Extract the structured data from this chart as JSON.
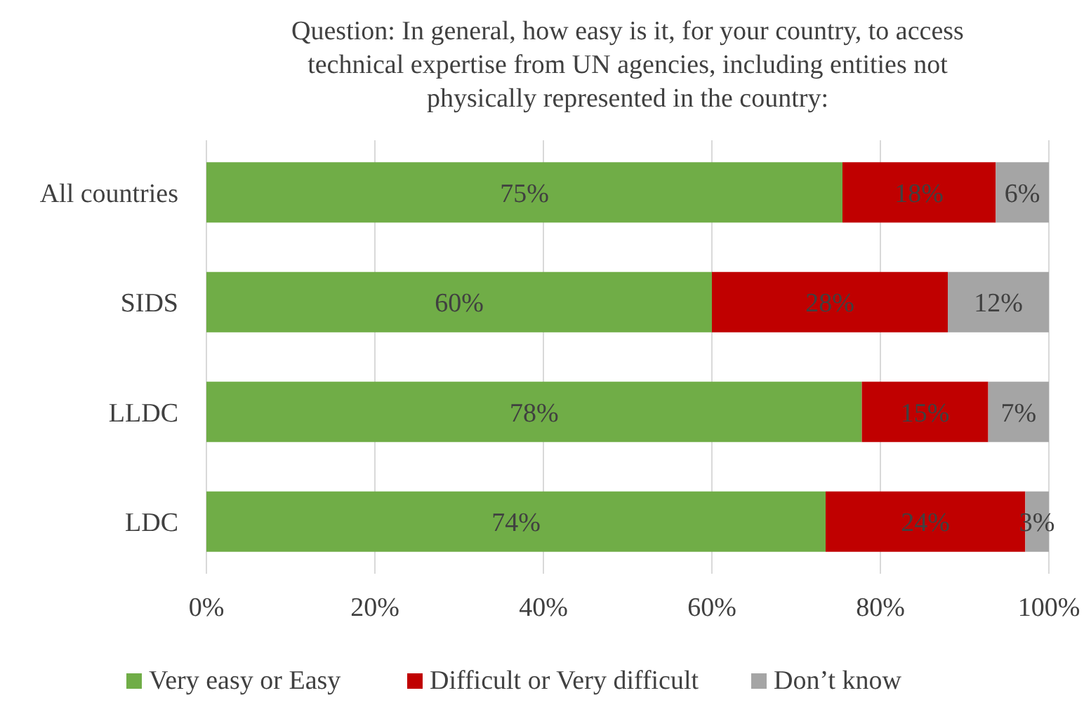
{
  "chart_data": {
    "type": "bar",
    "orientation": "horizontal",
    "stacked": true,
    "title": "Question: In general, how easy is it, for your country, to access\ntechnical expertise from UN agencies, including entities not\nphysically represented in the country:",
    "categories": [
      "All countries",
      "SIDS",
      "LLDC",
      "LDC"
    ],
    "series": [
      {
        "name": "Very easy or Easy",
        "color": "#70ad47",
        "values": [
          75.5,
          60,
          77.8,
          73.5
        ],
        "value_labels": [
          "75%",
          "60%",
          "78%",
          "74%"
        ]
      },
      {
        "name": "Difficult or Very difficult",
        "color": "#c00000",
        "values": [
          18.2,
          28,
          15,
          23.7
        ],
        "value_labels": [
          "18%",
          "28%",
          "15%",
          "24%"
        ]
      },
      {
        "name": "Don’t know",
        "color": "#a5a5a5",
        "values": [
          6.3,
          12,
          7.2,
          2.8
        ],
        "value_labels": [
          "6%",
          "12%",
          "7%",
          "3%"
        ]
      }
    ],
    "xlim": [
      0,
      100
    ],
    "xticks": [
      {
        "value": 0,
        "label": "0%"
      },
      {
        "value": 20,
        "label": "20%"
      },
      {
        "value": 40,
        "label": "40%"
      },
      {
        "value": 60,
        "label": "60%"
      },
      {
        "value": 80,
        "label": "80%"
      },
      {
        "value": 100,
        "label": "100%"
      }
    ],
    "grid": "x",
    "legend": "bottom"
  }
}
